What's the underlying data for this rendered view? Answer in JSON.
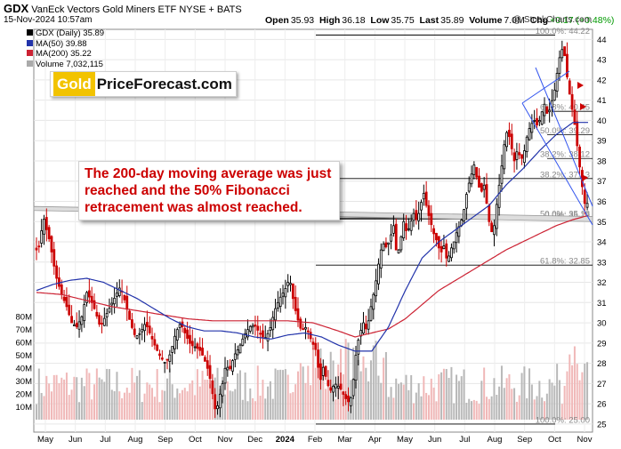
{
  "header": {
    "symbol": "GDX",
    "name": "VanEck Vectors Gold Miners ETF",
    "exchange": "NYSE + BATS",
    "date": "15-Nov-2024 10:57am",
    "open_label": "Open",
    "open": "35.93",
    "high_label": "High",
    "high": "36.18",
    "low_label": "Low",
    "low": "35.75",
    "close_label": "Last",
    "close": "35.89",
    "volume_label": "Volume",
    "volume": "7.0M",
    "chg_label": "Chg",
    "chg": "+0.17 (+0.48%)"
  },
  "legend": {
    "price": "GDX (Daily) 35.89",
    "ma50": "MA(50) 39.88",
    "ma200": "MA(200) 35.22",
    "volume": "Volume 7,032,115"
  },
  "copyright": "@ StockCharts.com",
  "logo": {
    "gold": "Gold",
    "rest": "PriceForecast.com"
  },
  "annotation": "The 200-day moving average was just reached and the 50% Fibonacci retracement was almost reached.",
  "colors": {
    "up": "#000000",
    "down": "#cc0000",
    "ma50": "#2233aa",
    "ma200": "#cc2233",
    "vol_up": "#b8b8b8",
    "vol_down": "#f0b8b8",
    "channel": "#3355ee",
    "fib": "#000000",
    "support": "#999999",
    "quote_up": "#009900"
  },
  "chart_data": {
    "type": "candlestick",
    "x_ticks": [
      "May",
      "Jun",
      "Jul",
      "Aug",
      "Sep",
      "Oct",
      "Nov",
      "Dec",
      "2024",
      "Feb",
      "Mar",
      "Apr",
      "May",
      "Jun",
      "Jul",
      "Aug",
      "Sep",
      "Oct",
      "Nov"
    ],
    "y_ticks": [
      25,
      26,
      27,
      28,
      29,
      30,
      31,
      32,
      33,
      34,
      35,
      36,
      37,
      38,
      39,
      40,
      41,
      42,
      43,
      44
    ],
    "ylim": [
      24.6,
      44.5
    ],
    "volume_ticks": [
      "10M",
      "20M",
      "30M",
      "40M",
      "50M",
      "60M",
      "70M",
      "80M"
    ],
    "volume_labels_max": 80,
    "price_path": [
      [
        0,
        33.6
      ],
      [
        4,
        33.8
      ],
      [
        8,
        35.3
      ],
      [
        12,
        34.6
      ],
      [
        16,
        34.0
      ],
      [
        20,
        33.0
      ],
      [
        24,
        32.2
      ],
      [
        30,
        31.4
      ],
      [
        36,
        30.8
      ],
      [
        42,
        30.0
      ],
      [
        48,
        29.8
      ],
      [
        54,
        30.3
      ],
      [
        60,
        31.5
      ],
      [
        64,
        31.2
      ],
      [
        70,
        30.6
      ],
      [
        76,
        29.8
      ],
      [
        82,
        30.3
      ],
      [
        88,
        30.8
      ],
      [
        94,
        31.3
      ],
      [
        100,
        31.8
      ],
      [
        106,
        31.0
      ],
      [
        112,
        30.0
      ],
      [
        118,
        29.3
      ],
      [
        124,
        29.5
      ],
      [
        130,
        30.0
      ],
      [
        136,
        29.4
      ],
      [
        142,
        28.8
      ],
      [
        148,
        28.3
      ],
      [
        154,
        28.0
      ],
      [
        160,
        28.5
      ],
      [
        166,
        29.5
      ],
      [
        172,
        30.0
      ],
      [
        178,
        29.4
      ],
      [
        184,
        28.9
      ],
      [
        190,
        28.8
      ],
      [
        196,
        28.6
      ],
      [
        202,
        28.0
      ],
      [
        206,
        27.5
      ],
      [
        210,
        26.5
      ],
      [
        214,
        25.5
      ],
      [
        218,
        26.3
      ],
      [
        222,
        27.0
      ],
      [
        226,
        28.0
      ],
      [
        230,
        27.6
      ],
      [
        236,
        28.4
      ],
      [
        242,
        28.8
      ],
      [
        248,
        29.4
      ],
      [
        254,
        29.8
      ],
      [
        260,
        29.9
      ],
      [
        266,
        29.5
      ],
      [
        272,
        29.2
      ],
      [
        278,
        29.6
      ],
      [
        284,
        30.6
      ],
      [
        290,
        31.2
      ],
      [
        296,
        31.6
      ],
      [
        302,
        32.2
      ],
      [
        306,
        31.2
      ],
      [
        310,
        30.4
      ],
      [
        316,
        29.6
      ],
      [
        322,
        29.8
      ],
      [
        328,
        29.1
      ],
      [
        334,
        28.6
      ],
      [
        338,
        27.0
      ],
      [
        342,
        27.8
      ],
      [
        346,
        27.2
      ],
      [
        350,
        26.6
      ],
      [
        356,
        27.0
      ],
      [
        362,
        26.8
      ],
      [
        368,
        26.3
      ],
      [
        374,
        26.0
      ],
      [
        378,
        27.2
      ],
      [
        382,
        28.8
      ],
      [
        386,
        29.5
      ],
      [
        390,
        30.0
      ],
      [
        394,
        29.6
      ],
      [
        398,
        30.6
      ],
      [
        402,
        31.4
      ],
      [
        406,
        32.3
      ],
      [
        410,
        33.5
      ],
      [
        414,
        33.9
      ],
      [
        418,
        33.7
      ],
      [
        422,
        34.2
      ],
      [
        426,
        34.8
      ],
      [
        430,
        33.2
      ],
      [
        434,
        34.0
      ],
      [
        438,
        35.0
      ],
      [
        442,
        34.4
      ],
      [
        446,
        34.9
      ],
      [
        450,
        35.4
      ],
      [
        454,
        35.0
      ],
      [
        458,
        35.8
      ],
      [
        462,
        36.4
      ],
      [
        466,
        35.6
      ],
      [
        470,
        35.0
      ],
      [
        474,
        34.4
      ],
      [
        478,
        34.0
      ],
      [
        482,
        33.4
      ],
      [
        486,
        33.8
      ],
      [
        490,
        33.0
      ],
      [
        494,
        33.6
      ],
      [
        498,
        34.0
      ],
      [
        502,
        34.6
      ],
      [
        506,
        34.9
      ],
      [
        510,
        35.6
      ],
      [
        514,
        36.6
      ],
      [
        518,
        37.2
      ],
      [
        522,
        37.8
      ],
      [
        526,
        37.0
      ],
      [
        530,
        36.4
      ],
      [
        534,
        36.8
      ],
      [
        538,
        35.6
      ],
      [
        542,
        34.4
      ],
      [
        546,
        34.8
      ],
      [
        550,
        36.2
      ],
      [
        554,
        37.4
      ],
      [
        558,
        38.8
      ],
      [
        562,
        39.6
      ],
      [
        566,
        38.8
      ],
      [
        570,
        38.0
      ],
      [
        574,
        38.6
      ],
      [
        578,
        38.0
      ],
      [
        582,
        38.5
      ],
      [
        586,
        39.4
      ],
      [
        590,
        39.8
      ],
      [
        594,
        40.0
      ],
      [
        598,
        39.7
      ],
      [
        602,
        40.3
      ],
      [
        606,
        40.8
      ],
      [
        610,
        40.2
      ],
      [
        614,
        40.8
      ],
      [
        618,
        41.5
      ],
      [
        622,
        42.6
      ],
      [
        626,
        43.6
      ],
      [
        630,
        43.2
      ],
      [
        634,
        41.8
      ],
      [
        638,
        40.8
      ],
      [
        642,
        39.8
      ],
      [
        646,
        38.4
      ],
      [
        650,
        37.0
      ],
      [
        654,
        35.9
      ],
      [
        658,
        35.9
      ]
    ],
    "ma50_path": [
      [
        0,
        31.6
      ],
      [
        20,
        31.9
      ],
      [
        40,
        32.1
      ],
      [
        60,
        32.2
      ],
      [
        80,
        32.0
      ],
      [
        100,
        31.6
      ],
      [
        120,
        31.2
      ],
      [
        140,
        30.7
      ],
      [
        160,
        30.2
      ],
      [
        180,
        29.8
      ],
      [
        200,
        29.6
      ],
      [
        220,
        29.6
      ],
      [
        240,
        29.5
      ],
      [
        260,
        29.3
      ],
      [
        280,
        29.2
      ],
      [
        300,
        29.4
      ],
      [
        320,
        29.5
      ],
      [
        340,
        29.3
      ],
      [
        360,
        28.9
      ],
      [
        380,
        28.6
      ],
      [
        400,
        28.6
      ],
      [
        420,
        29.8
      ],
      [
        440,
        31.6
      ],
      [
        460,
        33.2
      ],
      [
        480,
        34.0
      ],
      [
        500,
        34.6
      ],
      [
        520,
        35.2
      ],
      [
        540,
        35.8
      ],
      [
        560,
        36.8
      ],
      [
        580,
        37.6
      ],
      [
        600,
        38.5
      ],
      [
        620,
        39.3
      ],
      [
        640,
        39.9
      ],
      [
        658,
        39.9
      ]
    ],
    "ma200_path": [
      [
        0,
        31.5
      ],
      [
        30,
        31.4
      ],
      [
        60,
        31.1
      ],
      [
        90,
        30.8
      ],
      [
        120,
        30.6
      ],
      [
        150,
        30.4
      ],
      [
        180,
        30.2
      ],
      [
        210,
        30.1
      ],
      [
        240,
        30.1
      ],
      [
        270,
        30.1
      ],
      [
        300,
        30.1
      ],
      [
        330,
        30.0
      ],
      [
        360,
        29.6
      ],
      [
        380,
        29.3
      ],
      [
        400,
        29.5
      ],
      [
        420,
        29.7
      ],
      [
        440,
        30.2
      ],
      [
        460,
        30.9
      ],
      [
        480,
        31.6
      ],
      [
        500,
        32.1
      ],
      [
        520,
        32.6
      ],
      [
        540,
        33.1
      ],
      [
        560,
        33.6
      ],
      [
        580,
        34.0
      ],
      [
        600,
        34.4
      ],
      [
        620,
        34.8
      ],
      [
        640,
        35.1
      ],
      [
        658,
        35.3
      ]
    ],
    "fib_levels": [
      {
        "label": "100.0%: 44.22",
        "value": 44.22
      },
      {
        "label": "61.8%: 40.45",
        "value": 40.45
      },
      {
        "label": "50.0%: 39.29",
        "value": 39.29
      },
      {
        "label": "38.2%: 38.12",
        "value": 38.12
      },
      {
        "label": "38.2%: 37.13",
        "value": 37.13
      },
      {
        "label": "0.0%: 35.13",
        "value": 35.13
      },
      {
        "label": "50.0%: 35.18",
        "value": 35.18
      },
      {
        "label": "61.8%: 32.85",
        "value": 32.85
      },
      {
        "label": "100.0%: 25.00",
        "value": 25.0
      }
    ]
  }
}
